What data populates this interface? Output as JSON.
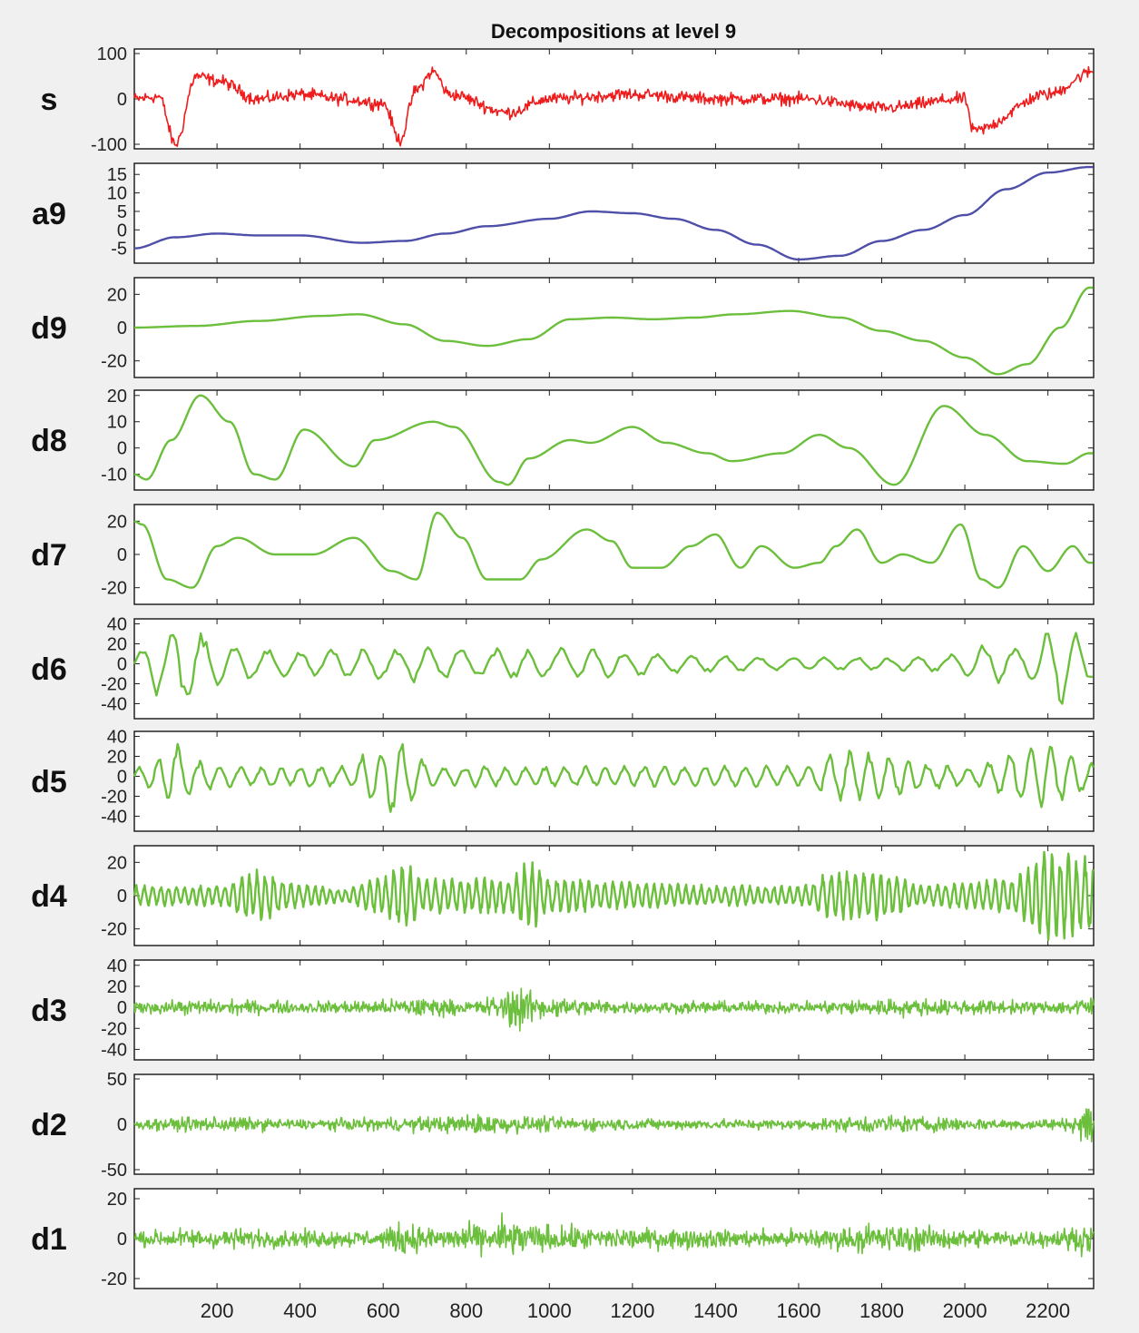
{
  "chart_data": {
    "type": "line",
    "title": "Decompositions at level 9",
    "xlim": [
      1,
      2310
    ],
    "x_ticks": [
      "200",
      "400",
      "600",
      "800",
      "1000",
      "1200",
      "1400",
      "1600",
      "1800",
      "2000",
      "2200"
    ],
    "grid": false,
    "legend": "none",
    "panels": [
      {
        "label": "s",
        "color": "#ee1c1c",
        "ylim": [
          -110,
          110
        ],
        "ticks": [
          {
            "value": 100,
            "text": "100"
          },
          {
            "value": 0,
            "text": "0"
          },
          {
            "value": -100,
            "text": "-100"
          }
        ],
        "series": {
          "kind": "noisy",
          "amplitude": 20,
          "x": [
            0,
            60,
            100,
            150,
            200,
            300,
            400,
            500,
            600,
            640,
            680,
            720,
            760,
            900,
            1000,
            1200,
            1400,
            1600,
            1800,
            2000,
            2020,
            2200,
            2310
          ],
          "y": [
            0,
            5,
            -100,
            50,
            40,
            0,
            10,
            0,
            -10,
            -90,
            20,
            60,
            10,
            -30,
            0,
            10,
            0,
            0,
            -20,
            0,
            -70,
            10,
            60
          ]
        }
      },
      {
        "label": "a9",
        "color": "#4e4fa8",
        "ylim": [
          -9,
          18
        ],
        "ticks": [
          {
            "value": 15,
            "text": "15"
          },
          {
            "value": 10,
            "text": "10"
          },
          {
            "value": 5,
            "text": "5"
          },
          {
            "value": 0,
            "text": "0"
          },
          {
            "value": -5,
            "text": "-5"
          }
        ],
        "series": {
          "kind": "smooth",
          "x": [
            0,
            100,
            200,
            300,
            400,
            550,
            650,
            750,
            850,
            1000,
            1100,
            1200,
            1300,
            1400,
            1500,
            1600,
            1700,
            1800,
            1900,
            2000,
            2100,
            2200,
            2300
          ],
          "y": [
            -5,
            -2,
            -1,
            -1.5,
            -1.5,
            -3.5,
            -3,
            -1,
            1,
            3,
            5,
            4.5,
            3,
            0,
            -4,
            -8,
            -7,
            -3,
            0,
            4,
            11,
            15.5,
            17
          ]
        }
      },
      {
        "label": "d9",
        "color": "#6cbf3c",
        "ylim": [
          -30,
          30
        ],
        "ticks": [
          {
            "value": 20,
            "text": "20"
          },
          {
            "value": 0,
            "text": "0"
          },
          {
            "value": -20,
            "text": "-20"
          }
        ],
        "series": {
          "kind": "smooth",
          "x": [
            0,
            150,
            300,
            450,
            540,
            650,
            750,
            850,
            950,
            1050,
            1150,
            1250,
            1350,
            1450,
            1580,
            1700,
            1800,
            1900,
            2000,
            2080,
            2150,
            2230,
            2300
          ],
          "y": [
            0,
            1,
            4,
            7,
            8,
            2,
            -8,
            -11,
            -7,
            5,
            6,
            5,
            6,
            8,
            10,
            6,
            -2,
            -8,
            -18,
            -28,
            -22,
            0,
            24
          ]
        }
      },
      {
        "label": "d8",
        "color": "#6cbf3c",
        "ylim": [
          -16,
          22
        ],
        "ticks": [
          {
            "value": 20,
            "text": "20"
          },
          {
            "value": 10,
            "text": "10"
          },
          {
            "value": 0,
            "text": "0"
          },
          {
            "value": -10,
            "text": "-10"
          }
        ],
        "series": {
          "kind": "smooth",
          "x": [
            0,
            30,
            90,
            160,
            230,
            290,
            340,
            410,
            530,
            580,
            720,
            770,
            880,
            900,
            950,
            1050,
            1100,
            1200,
            1280,
            1380,
            1440,
            1560,
            1650,
            1720,
            1830,
            1950,
            2050,
            2150,
            2240,
            2300
          ],
          "y": [
            -10,
            -12,
            3,
            20,
            10,
            -10,
            -12,
            7,
            -7,
            3,
            10,
            8,
            -13,
            -14,
            -4,
            3,
            2,
            8,
            2,
            -2,
            -5,
            -2,
            5,
            0,
            -14,
            16,
            5,
            -5,
            -6,
            -2
          ]
        }
      },
      {
        "label": "d7",
        "color": "#6cbf3c",
        "ylim": [
          -30,
          30
        ],
        "ticks": [
          {
            "value": 20,
            "text": "20"
          },
          {
            "value": 0,
            "text": "0"
          },
          {
            "value": -20,
            "text": "-20"
          }
        ],
        "series": {
          "kind": "smooth",
          "x": [
            0,
            20,
            80,
            140,
            200,
            250,
            340,
            430,
            530,
            620,
            680,
            730,
            790,
            850,
            930,
            980,
            1090,
            1150,
            1200,
            1270,
            1340,
            1400,
            1460,
            1510,
            1590,
            1650,
            1690,
            1740,
            1800,
            1850,
            1920,
            1990,
            2040,
            2080,
            2140,
            2200,
            2260,
            2300
          ],
          "y": [
            20,
            18,
            -15,
            -20,
            5,
            10,
            0,
            0,
            10,
            -10,
            -15,
            25,
            10,
            -15,
            -15,
            -3,
            15,
            8,
            -8,
            -8,
            5,
            12,
            -8,
            5,
            -8,
            -5,
            5,
            15,
            -5,
            0,
            -5,
            18,
            -15,
            -20,
            5,
            -10,
            5,
            -5
          ]
        }
      },
      {
        "label": "d6",
        "color": "#6cbf3c",
        "ylim": [
          -55,
          45
        ],
        "ticks": [
          {
            "value": 40,
            "text": "40"
          },
          {
            "value": 20,
            "text": "20"
          },
          {
            "value": 0,
            "text": "0"
          },
          {
            "value": -20,
            "text": "-20"
          },
          {
            "value": -40,
            "text": "-40"
          }
        ],
        "series": {
          "kind": "oscillation",
          "period": 80,
          "env_x": [
            0,
            60,
            120,
            200,
            400,
            600,
            700,
            800,
            1000,
            1200,
            1400,
            1600,
            1800,
            1950,
            2050,
            2150,
            2230,
            2280,
            2310
          ],
          "env_y": [
            10,
            30,
            45,
            20,
            12,
            15,
            18,
            14,
            15,
            12,
            8,
            6,
            6,
            8,
            20,
            15,
            40,
            30,
            20
          ]
        }
      },
      {
        "label": "d5",
        "color": "#6cbf3c",
        "ylim": [
          -55,
          45
        ],
        "ticks": [
          {
            "value": 40,
            "text": "40"
          },
          {
            "value": 20,
            "text": "20"
          },
          {
            "value": 0,
            "text": "0"
          },
          {
            "value": -20,
            "text": "-20"
          },
          {
            "value": -40,
            "text": "-40"
          }
        ],
        "series": {
          "kind": "oscillation",
          "period": 50,
          "env_x": [
            0,
            100,
            150,
            250,
            350,
            500,
            600,
            630,
            660,
            720,
            900,
            1100,
            1300,
            1600,
            1700,
            2000,
            2200,
            2310
          ],
          "env_y": [
            8,
            30,
            15,
            10,
            10,
            10,
            30,
            45,
            30,
            10,
            10,
            10,
            10,
            10,
            25,
            10,
            30,
            15
          ]
        }
      },
      {
        "label": "d4",
        "color": "#6cbf3c",
        "ylim": [
          -30,
          30
        ],
        "ticks": [
          {
            "value": 20,
            "text": "20"
          },
          {
            "value": 0,
            "text": "0"
          },
          {
            "value": -20,
            "text": "-20"
          }
        ],
        "series": {
          "kind": "oscillation",
          "period": 20,
          "env_x": [
            0,
            200,
            300,
            400,
            500,
            600,
            650,
            700,
            900,
            950,
            1000,
            1200,
            1400,
            1600,
            1700,
            1800,
            1900,
            2000,
            2100,
            2200,
            2300
          ],
          "env_y": [
            6,
            6,
            15,
            7,
            4,
            12,
            18,
            10,
            10,
            20,
            10,
            8,
            6,
            6,
            15,
            15,
            6,
            8,
            10,
            25,
            22
          ]
        }
      },
      {
        "label": "d3",
        "color": "#6cbf3c",
        "ylim": [
          -50,
          45
        ],
        "ticks": [
          {
            "value": 40,
            "text": "40"
          },
          {
            "value": 20,
            "text": "20"
          },
          {
            "value": 0,
            "text": "0"
          },
          {
            "value": -20,
            "text": "-20"
          },
          {
            "value": -40,
            "text": "-40"
          }
        ],
        "series": {
          "kind": "noisy",
          "amplitude": 10,
          "env_x": [
            0,
            200,
            400,
            600,
            700,
            800,
            880,
            920,
            960,
            1000,
            1200,
            1400,
            1600,
            1800,
            2000,
            2200,
            2300
          ],
          "env_y": [
            8,
            10,
            8,
            10,
            14,
            8,
            16,
            35,
            20,
            14,
            8,
            8,
            8,
            12,
            10,
            8,
            14
          ],
          "x": [
            0,
            2310
          ],
          "y": [
            0,
            0
          ]
        }
      },
      {
        "label": "d2",
        "color": "#6cbf3c",
        "ylim": [
          -55,
          55
        ],
        "ticks": [
          {
            "value": 50,
            "text": "50"
          },
          {
            "value": 0,
            "text": "0"
          },
          {
            "value": -50,
            "text": "-50"
          }
        ],
        "series": {
          "kind": "noisy",
          "amplitude": 10,
          "env_x": [
            0,
            200,
            400,
            600,
            700,
            850,
            950,
            1100,
            1300,
            1600,
            1800,
            1900,
            2000,
            2100,
            2250,
            2300
          ],
          "env_y": [
            8,
            12,
            8,
            10,
            12,
            16,
            12,
            10,
            8,
            8,
            14,
            12,
            10,
            8,
            10,
            35
          ],
          "x": [
            0,
            2310
          ],
          "y": [
            0,
            0
          ]
        }
      },
      {
        "label": "d1",
        "color": "#6cbf3c",
        "ylim": [
          -25,
          25
        ],
        "ticks": [
          {
            "value": 20,
            "text": "20"
          },
          {
            "value": 0,
            "text": "0"
          },
          {
            "value": -20,
            "text": "-20"
          }
        ],
        "series": {
          "kind": "noisy",
          "amplitude": 6,
          "env_x": [
            0,
            200,
            400,
            600,
            650,
            700,
            850,
            900,
            950,
            1100,
            1300,
            1500,
            1700,
            1800,
            1850,
            2000,
            2200,
            2300
          ],
          "env_y": [
            6,
            7,
            6,
            6,
            12,
            8,
            10,
            16,
            10,
            8,
            7,
            6,
            8,
            11,
            9,
            7,
            6,
            10
          ],
          "x": [
            0,
            2310
          ],
          "y": [
            0,
            0
          ]
        }
      }
    ]
  }
}
